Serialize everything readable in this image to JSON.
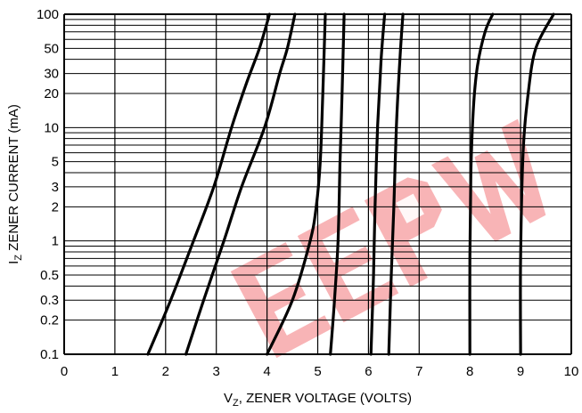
{
  "chart_data": {
    "type": "line",
    "xlabel": {
      "main": "V",
      "sub": "Z",
      "rest": ", ZENER VOLTAGE (VOLTS)"
    },
    "ylabel": {
      "main": "I",
      "sub": "Z",
      "rest": " ZENER CURRENT (mA)"
    },
    "xlim": [
      0,
      10
    ],
    "ylim": [
      0.1,
      100
    ],
    "yscale": "log",
    "grid": true,
    "x_ticks": [
      0,
      1,
      2,
      3,
      4,
      5,
      6,
      7,
      8,
      9,
      10
    ],
    "y_ticks": [
      0.1,
      0.2,
      0.3,
      0.5,
      1,
      2,
      3,
      5,
      10,
      20,
      30,
      50,
      100
    ],
    "y_minor_ticks": [
      0.4,
      0.6,
      0.7,
      0.8,
      0.9,
      4,
      6,
      7,
      8,
      9,
      40,
      60,
      70,
      80,
      90
    ],
    "watermark": "EEPW",
    "watermark_color": "#f2777a",
    "series": [
      {
        "points": [
          [
            1.65,
            0.1
          ],
          [
            2.1,
            0.3
          ],
          [
            2.55,
            1
          ],
          [
            2.95,
            3
          ],
          [
            3.3,
            10
          ],
          [
            3.6,
            25
          ],
          [
            3.85,
            50
          ],
          [
            4.05,
            100
          ]
        ]
      },
      {
        "points": [
          [
            2.4,
            0.1
          ],
          [
            2.75,
            0.3
          ],
          [
            3.15,
            1
          ],
          [
            3.5,
            3
          ],
          [
            3.95,
            10
          ],
          [
            4.25,
            30
          ],
          [
            4.4,
            50
          ],
          [
            4.55,
            100
          ]
        ]
      },
      {
        "points": [
          [
            4.0,
            0.1
          ],
          [
            4.5,
            0.3
          ],
          [
            4.85,
            1
          ],
          [
            4.97,
            2
          ],
          [
            5.05,
            5
          ],
          [
            5.1,
            20
          ],
          [
            5.15,
            100
          ]
        ]
      },
      {
        "points": [
          [
            5.25,
            0.1
          ],
          [
            5.33,
            0.3
          ],
          [
            5.4,
            1
          ],
          [
            5.44,
            5
          ],
          [
            5.48,
            20
          ],
          [
            5.52,
            100
          ]
        ]
      },
      {
        "points": [
          [
            6.05,
            0.1
          ],
          [
            6.1,
            0.5
          ],
          [
            6.13,
            2
          ],
          [
            6.18,
            10
          ],
          [
            6.25,
            40
          ],
          [
            6.32,
            100
          ]
        ]
      },
      {
        "points": [
          [
            6.4,
            0.1
          ],
          [
            6.45,
            0.5
          ],
          [
            6.5,
            2
          ],
          [
            6.55,
            10
          ],
          [
            6.62,
            40
          ],
          [
            6.68,
            100
          ]
        ]
      },
      {
        "points": [
          [
            8.0,
            0.1
          ],
          [
            8.0,
            0.7
          ],
          [
            8.02,
            4
          ],
          [
            8.07,
            15
          ],
          [
            8.15,
            35
          ],
          [
            8.3,
            70
          ],
          [
            8.45,
            100
          ]
        ]
      },
      {
        "points": [
          [
            9.0,
            0.1
          ],
          [
            9.0,
            0.7
          ],
          [
            9.05,
            6
          ],
          [
            9.15,
            20
          ],
          [
            9.3,
            50
          ],
          [
            9.65,
            100
          ]
        ]
      }
    ]
  }
}
